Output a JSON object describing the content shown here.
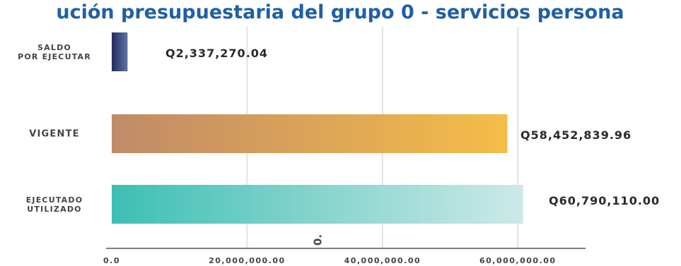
{
  "chart_data": {
    "type": "bar",
    "orientation": "horizontal",
    "title": "ución presupuestaria del grupo 0 - servicios persona",
    "categories": [
      {
        "lines": [
          "SALDO",
          "POR EJECUTAR"
        ]
      },
      {
        "lines": [
          "VIGENTE"
        ]
      },
      {
        "lines": [
          "EJECUTADO",
          "UTILIZADO"
        ]
      }
    ],
    "values": [
      2337270.04,
      58452839.96,
      60790110.0
    ],
    "value_labels": [
      "Q2,337,270.04",
      "Q58,452,839.96",
      "Q60,790,110.00"
    ],
    "xlim": [
      0,
      70000000
    ],
    "x_ticks": [
      {
        "value": 0,
        "label": "0.0"
      },
      {
        "value": 20000000,
        "label": "20,000,000.00"
      },
      {
        "value": 40000000,
        "label": "40,000,000.00"
      },
      {
        "value": 60000000,
        "label": "60,000,000.00"
      }
    ],
    "stray_label": "0.",
    "grid": true,
    "colors": {
      "saldo": [
        "#222c5c",
        "#5f73a6"
      ],
      "vigente": [
        "#c08a68",
        "#f5bd48"
      ],
      "ejecutado": [
        "#3dbfb4",
        "#cde9e7"
      ],
      "title": "#1f5fa6",
      "grid": "#e2e2e2",
      "axis": "#555555"
    }
  }
}
